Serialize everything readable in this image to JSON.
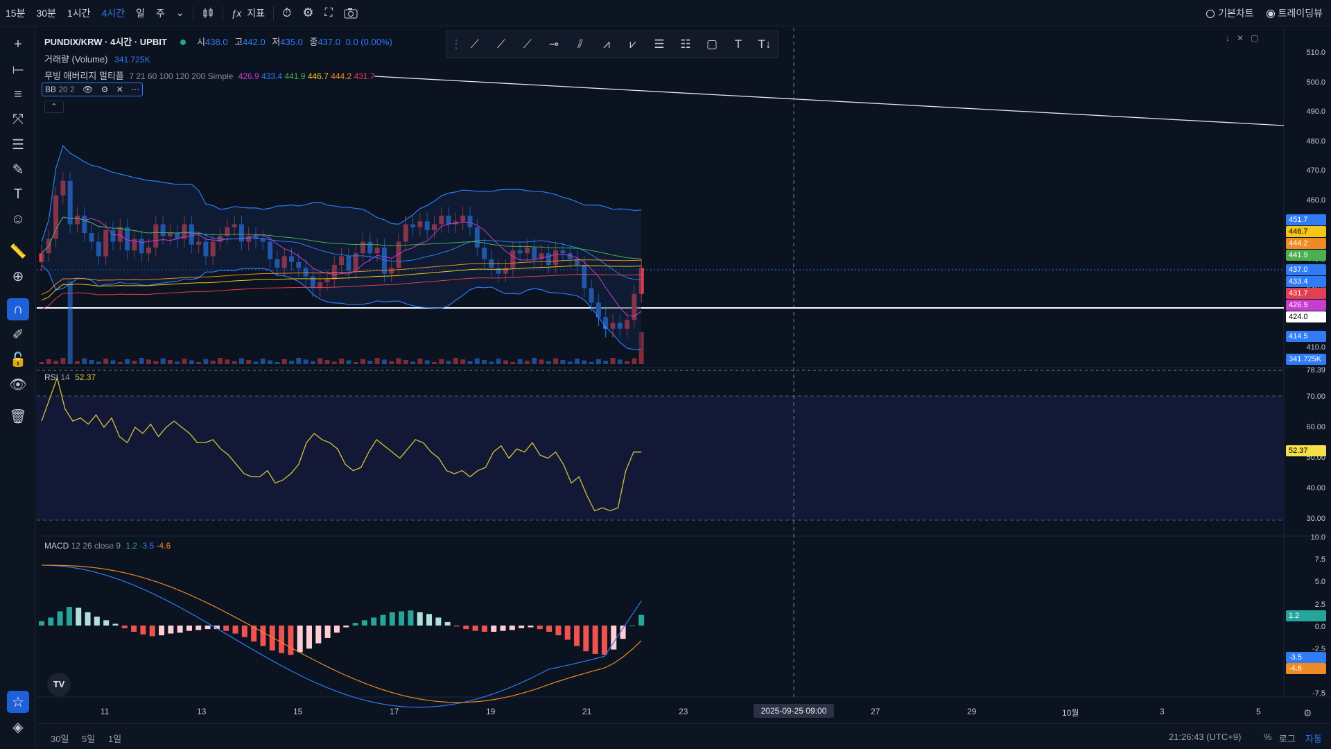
{
  "topbar": {
    "intervals": [
      "15분",
      "30분",
      "1시간",
      "4시간",
      "일",
      "주"
    ],
    "active_interval": "4시간",
    "indicators_label": "지표",
    "basic_chart": "기본차트",
    "tradingview": "트레이딩뷰"
  },
  "legend": {
    "symbol": "PUNDIX/KRW · 4시간 · UPBIT",
    "ohlc": {
      "o_label": "시",
      "o": "438.0",
      "h_label": "고",
      "h": "442.0",
      "l_label": "저",
      "l": "435.0",
      "c_label": "종",
      "c": "437.0",
      "chg": "0.0 (0.00%)"
    },
    "volume_label": "거래량 (Volume)",
    "volume_value": "341.725K",
    "ma_label": "무빙 애버리지 멀티플",
    "ma_params": "7 21 60 100 120 200 Simple",
    "ma_values": [
      "426.9",
      "433.4",
      "441.9",
      "446.7",
      "444.2",
      "431.7"
    ],
    "bb_label": "BB",
    "bb_params": "20 2",
    "rsi_label": "RSI",
    "rsi_params": "14",
    "rsi_value": "52.37",
    "macd_label": "MACD",
    "macd_params": "12 26 close 9",
    "macd_values": [
      "1.2",
      "-3.5",
      "-4.6"
    ]
  },
  "colors": {
    "bg": "#0b1220",
    "up": "#e2404f",
    "down": "#2f7cf6",
    "bb": "#2f7cf6",
    "ma7": "#c83cd0",
    "ma21": "#2f7cf6",
    "ma60": "#4caf50",
    "ma100": "#f5c518",
    "ma120": "#f08a24",
    "ma200": "#e2404f",
    "rsi": "#d8c43a",
    "macd": "#2f7cf6",
    "signal": "#f08a24"
  },
  "price_axis": [
    "510.0",
    "500.0",
    "490.0",
    "480.0",
    "470.0",
    "460.0",
    "450.0",
    "440.0",
    "430.0",
    "420.0",
    "410.0"
  ],
  "price_tags": [
    {
      "v": "451.7",
      "c": "#2f7cf6"
    },
    {
      "v": "446.7",
      "c": "#f5c518"
    },
    {
      "v": "444.2",
      "c": "#f08a24"
    },
    {
      "v": "441.9",
      "c": "#4caf50"
    },
    {
      "v": "437.0",
      "c": "#2f7cf6"
    },
    {
      "v": "433.4",
      "c": "#2f7cf6"
    },
    {
      "v": "431.7",
      "c": "#e2404f"
    },
    {
      "v": "426.9",
      "c": "#c83cd0"
    },
    {
      "v": "424.0",
      "c": "#ffffff"
    },
    {
      "v": "414.5",
      "c": "#2f7cf6"
    },
    {
      "v": "341.725K",
      "c": "#2f7cf6"
    }
  ],
  "rsi_axis": [
    "78.39",
    "70.00",
    "60.00",
    "50.00",
    "40.00",
    "30.00"
  ],
  "rsi_tag": "52.37",
  "macd_axis": [
    "10.0",
    "7.5",
    "5.0",
    "2.5",
    "0.0",
    "-2.5",
    "-5.0",
    "-7.5"
  ],
  "macd_tags": [
    {
      "v": "1.2",
      "c": "#26a69a"
    },
    {
      "v": "-3.5",
      "c": "#2f7cf6"
    },
    {
      "v": "-4.6",
      "c": "#f08a24"
    }
  ],
  "date_axis": [
    "11",
    "13",
    "15",
    "17",
    "19",
    "21",
    "23",
    "27",
    "29",
    "10월",
    "3",
    "5"
  ],
  "crosshair_date": "2025-09-25  09:00",
  "bottombar": {
    "ranges": [
      "30일",
      "5일",
      "1일"
    ],
    "time": "21:26:43 (UTC+9)",
    "pct": "%",
    "log": "로그",
    "auto": "자동"
  },
  "chart_data": {
    "type": "candlestick",
    "symbol": "PUNDIX/KRW",
    "candles_close": [
      442,
      447,
      462,
      467,
      452,
      455,
      449,
      446,
      441,
      450,
      446,
      451,
      443,
      447,
      442,
      444,
      452,
      448,
      449,
      447,
      452,
      445,
      446,
      441,
      446,
      448,
      451,
      452,
      446,
      448,
      447,
      446,
      440,
      437,
      441,
      439,
      437,
      434,
      430,
      432,
      433,
      438,
      441,
      436,
      442,
      446,
      442,
      444,
      435,
      437,
      446,
      452,
      451,
      453,
      450,
      452,
      455,
      452,
      453,
      455,
      451,
      444,
      440,
      437,
      435,
      437,
      443,
      442,
      444,
      440,
      442,
      438,
      443,
      442,
      440,
      438,
      430,
      425,
      420,
      416,
      418,
      416,
      419,
      428,
      437
    ],
    "rsi_series": [
      62,
      69,
      76,
      66,
      62,
      63,
      61,
      64,
      60,
      63,
      57,
      55,
      60,
      58,
      61,
      57,
      60,
      62,
      60,
      58,
      55,
      55,
      56,
      53,
      51,
      48,
      45,
      44,
      44,
      46,
      42,
      43,
      45,
      48,
      55,
      58,
      56,
      55,
      53,
      48,
      46,
      47,
      52,
      56,
      54,
      52,
      50,
      53,
      56,
      55,
      52,
      50,
      46,
      45,
      46,
      44,
      46,
      47,
      52,
      54,
      50,
      53,
      52,
      55,
      51,
      50,
      52,
      48,
      42,
      44,
      38,
      33,
      34,
      33,
      34,
      46,
      52,
      52
    ],
    "macd_hist": [
      0.5,
      0.9,
      1.6,
      2.1,
      2.0,
      1.5,
      1.0,
      0.6,
      0.2,
      -0.3,
      -0.7,
      -1.0,
      -1.2,
      -1.1,
      -0.9,
      -0.8,
      -0.6,
      -0.5,
      -0.4,
      -0.4,
      -0.6,
      -0.9,
      -1.3,
      -1.8,
      -2.3,
      -2.8,
      -3.1,
      -3.3,
      -3.0,
      -2.6,
      -2.0,
      -1.4,
      -0.8,
      -0.2,
      0.3,
      0.6,
      0.9,
      1.2,
      1.5,
      1.6,
      1.7,
      1.5,
      1.3,
      0.9,
      0.4,
      -0.1,
      -0.4,
      -0.6,
      -0.7,
      -0.7,
      -0.6,
      -0.5,
      -0.3,
      -0.2,
      -0.4,
      -0.7,
      -1.1,
      -1.6,
      -2.3,
      -2.9,
      -3.2,
      -3.3,
      -2.7,
      -1.5,
      0.0,
      1.2
    ],
    "ylim": [
      405,
      515
    ]
  }
}
